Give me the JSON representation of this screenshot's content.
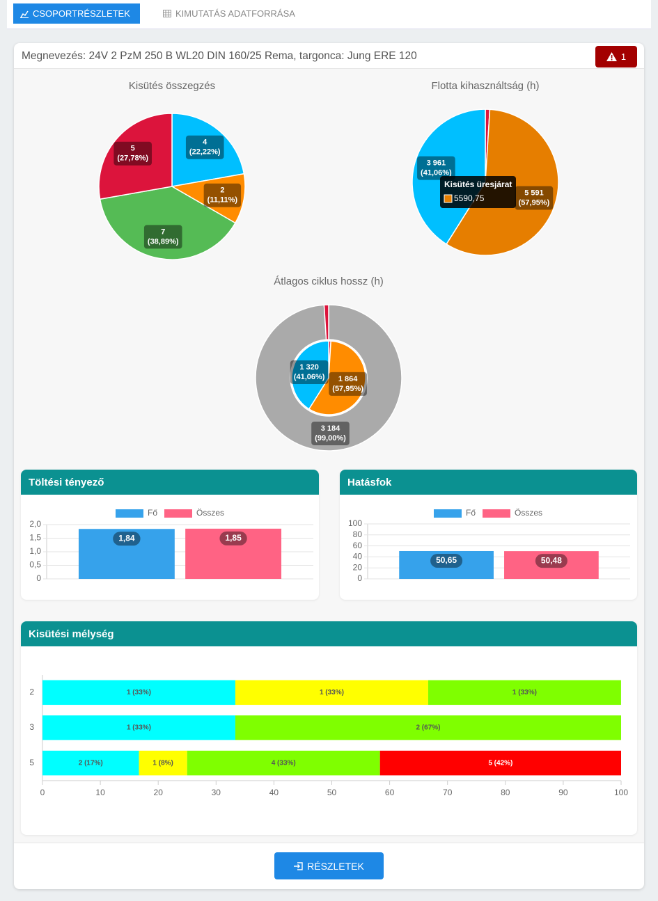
{
  "tabs": [
    {
      "label": "CSOPORTRÉSZLETEK",
      "active": true
    },
    {
      "label": "KIMUTATÁS ADATFORRÁSA",
      "active": false
    }
  ],
  "header": {
    "title": "Megnevezés: 24V 2 PzM 250 B WL20 DIN 160/25 Rema, targonca: Jung ERE 120",
    "alert_count": 1
  },
  "chart_data": [
    {
      "type": "pie",
      "title": "Kisütés összegzés",
      "values": [
        4,
        2,
        7,
        5
      ],
      "percent_labels": [
        "(22,22%)",
        "(11,11%)",
        "(38,89%)",
        "(27,78%)"
      ],
      "colors": [
        "#00bfff",
        "#ff8c00",
        "#55bb55",
        "#dc143c"
      ]
    },
    {
      "type": "pie",
      "title": "Flotta kihasználtság (h)",
      "values": [
        95,
        5590.75,
        3961
      ],
      "value_labels": [
        null,
        "5 591",
        "3 961"
      ],
      "percent_labels": [
        null,
        "(57,95%)",
        "(41,06%)"
      ],
      "colors": [
        "#dc143c",
        "#e67e00",
        "#00bfff"
      ],
      "tooltip": {
        "title": "Kisütés üresjárat",
        "value_label": "5590,75"
      }
    },
    {
      "type": "doughnut",
      "title": "Átlagos ciklus hossz (h)",
      "rings": [
        {
          "values": [
            3184,
            32
          ],
          "value_labels": [
            "3 184",
            null
          ],
          "percent_labels": [
            "(99,00%)",
            null
          ],
          "colors": [
            "#aaaaaa",
            "#dc143c"
          ]
        },
        {
          "values": [
            31,
            1864,
            1320
          ],
          "value_labels": [
            null,
            "1 864",
            "1 320"
          ],
          "percent_labels": [
            null,
            "(57,95%)",
            "(41,06%)"
          ],
          "colors": [
            "#dc143c",
            "#ff8c00",
            "#00bfff"
          ]
        }
      ]
    },
    {
      "type": "bar",
      "title": "Töltési tényező",
      "categories": [
        null
      ],
      "series": [
        {
          "name": "Fő",
          "color": "#36a2eb",
          "values": [
            1.84
          ],
          "value_labels": [
            "1,84"
          ]
        },
        {
          "name": "Összes",
          "color": "#ff6384",
          "values": [
            1.85
          ],
          "value_labels": [
            "1,85"
          ]
        }
      ],
      "ylim": [
        0,
        2
      ],
      "yticks": [
        0,
        {
          "value": 0.5,
          "label": "0,5"
        },
        {
          "value": 1,
          "label": "1,0"
        },
        {
          "value": 1.5,
          "label": "1,5"
        },
        {
          "value": 2,
          "label": "2,0"
        }
      ],
      "grid": true
    },
    {
      "type": "bar",
      "title": "Hatásfok",
      "categories": [
        null
      ],
      "series": [
        {
          "name": "Fő",
          "color": "#36a2eb",
          "values": [
            50.65
          ],
          "value_labels": [
            "50,65"
          ]
        },
        {
          "name": "Összes",
          "color": "#ff6384",
          "values": [
            50.48
          ],
          "value_labels": [
            "50,48"
          ]
        }
      ],
      "ylim": [
        0,
        100
      ],
      "yticks": [
        0,
        20,
        40,
        60,
        80,
        100
      ],
      "grid": true
    },
    {
      "type": "hbar",
      "title": "Kisütési mélység",
      "stacked": true,
      "categories": [
        "2",
        "3",
        "5"
      ],
      "series": [
        {
          "color": "#00ffff",
          "values": [
            33.33,
            33.33,
            16.67
          ],
          "value_labels": [
            "1 (33%)",
            "1 (33%)",
            "2 (17%)"
          ]
        },
        {
          "color": "#ffff00",
          "values": [
            33.33,
            0,
            8.33
          ],
          "value_labels": [
            "1 (33%)",
            null,
            "1 (8%)"
          ]
        },
        {
          "color": "#7fff00",
          "values": [
            33.33,
            66.67,
            33.33
          ],
          "value_labels": [
            "1 (33%)",
            "2 (67%)",
            "4 (33%)"
          ]
        },
        {
          "color": "#ff0000",
          "values": [
            0,
            0,
            41.67
          ],
          "value_labels": [
            null,
            null,
            "5 (42%)"
          ]
        }
      ],
      "xlim": [
        0,
        100
      ],
      "xticks": [
        0,
        10,
        20,
        30,
        40,
        50,
        60,
        70,
        80,
        90,
        100
      ],
      "grid": false
    }
  ],
  "button": "RÉSZLETEK"
}
